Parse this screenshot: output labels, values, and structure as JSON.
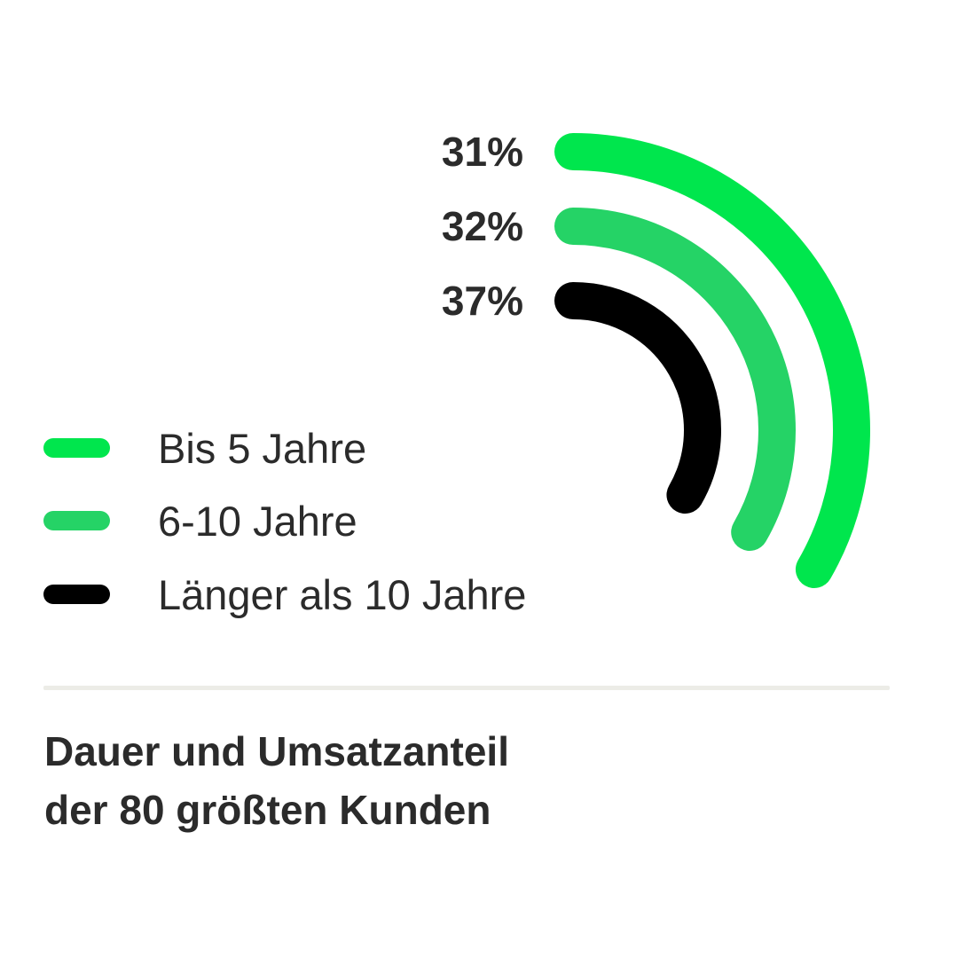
{
  "chart_data": {
    "type": "radial-bar",
    "series": [
      {
        "name": "Bis 5 Jahre",
        "value": 31,
        "label": "31%",
        "color": "#00e64d"
      },
      {
        "name": "6-10 Jahre",
        "value": 32,
        "label": "32%",
        "color": "#25d366"
      },
      {
        "name": "Länger als 10 Jahre",
        "value": 37,
        "label": "37%",
        "color": "#000000"
      }
    ],
    "legend_position": "left"
  },
  "caption": {
    "line1": "Dauer und Umsatzanteil",
    "line2": "der 80 größten Kunden"
  }
}
